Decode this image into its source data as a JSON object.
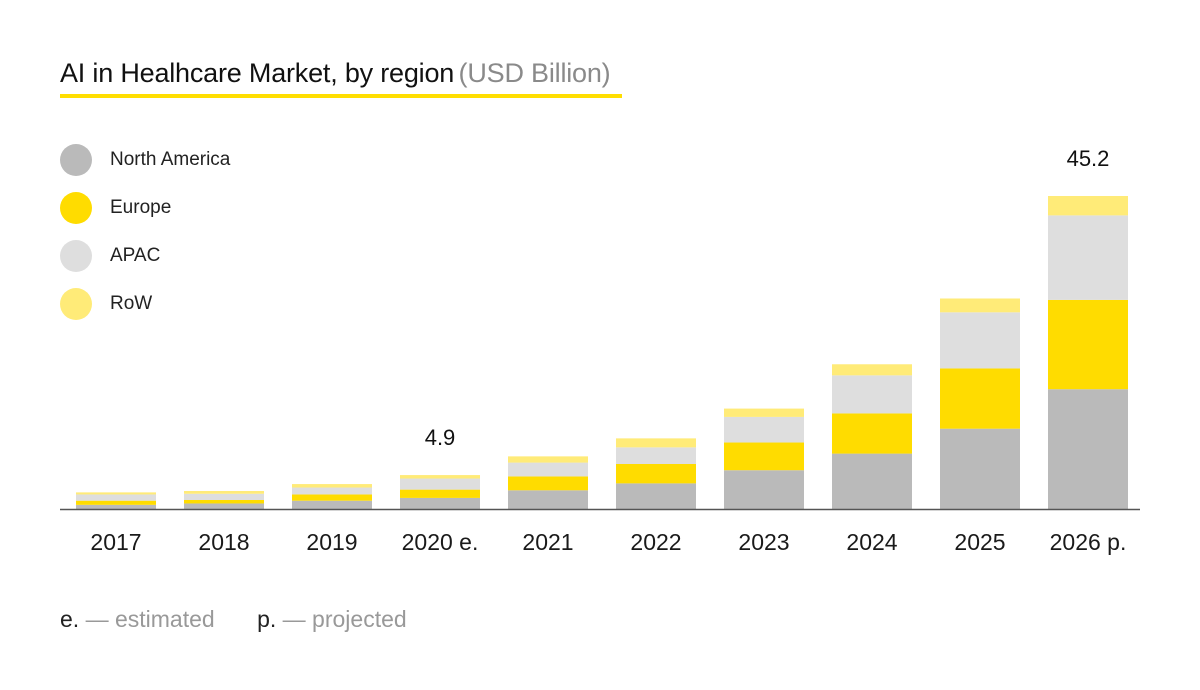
{
  "title": "AI in Healhcare Market, by region",
  "title_unit": "(USD Billion)",
  "colors": {
    "North America": "#bababa",
    "Europe": "#ffdc00",
    "APAC": "#dedede",
    "RoW": "#ffeb78",
    "accent": "#ffde00",
    "axis": "#555555"
  },
  "legend": [
    {
      "label": "North America",
      "color": "#bababa"
    },
    {
      "label": "Europe",
      "color": "#ffdc00"
    },
    {
      "label": "APAC",
      "color": "#dedede"
    },
    {
      "label": "RoW",
      "color": "#ffeb78"
    }
  ],
  "footnotes": [
    {
      "key": "e.",
      "text": "— estimated"
    },
    {
      "key": "p.",
      "text": "— projected"
    }
  ],
  "chart_data": {
    "type": "bar",
    "stacked": true,
    "title": "AI in Healhcare Market, by region",
    "ylabel": "USD Billion",
    "categories": [
      "2017",
      "2018",
      "2019",
      "2020 e.",
      "2021",
      "2022",
      "2023",
      "2024",
      "2025",
      "2026 p."
    ],
    "series": [
      {
        "name": "North America",
        "values": [
          0.6,
          0.8,
          1.2,
          1.6,
          2.7,
          3.7,
          5.6,
          8.0,
          11.6,
          17.3
        ]
      },
      {
        "name": "Europe",
        "values": [
          0.6,
          0.5,
          0.9,
          1.2,
          2.0,
          2.8,
          4.0,
          5.8,
          8.7,
          12.9
        ]
      },
      {
        "name": "APAC",
        "values": [
          0.9,
          0.9,
          1.0,
          1.6,
          2.0,
          2.4,
          3.7,
          5.5,
          8.1,
          12.2
        ]
      },
      {
        "name": "RoW",
        "values": [
          0.3,
          0.4,
          0.5,
          0.5,
          0.9,
          1.3,
          1.2,
          1.6,
          2.0,
          2.8
        ]
      }
    ],
    "data_labels": [
      {
        "category": "2020 e.",
        "text": "4.9"
      },
      {
        "category": "2026 p.",
        "text": "45.2"
      }
    ],
    "ylim": [
      0,
      45.2
    ],
    "grid": false,
    "legend_position": "top-left"
  }
}
